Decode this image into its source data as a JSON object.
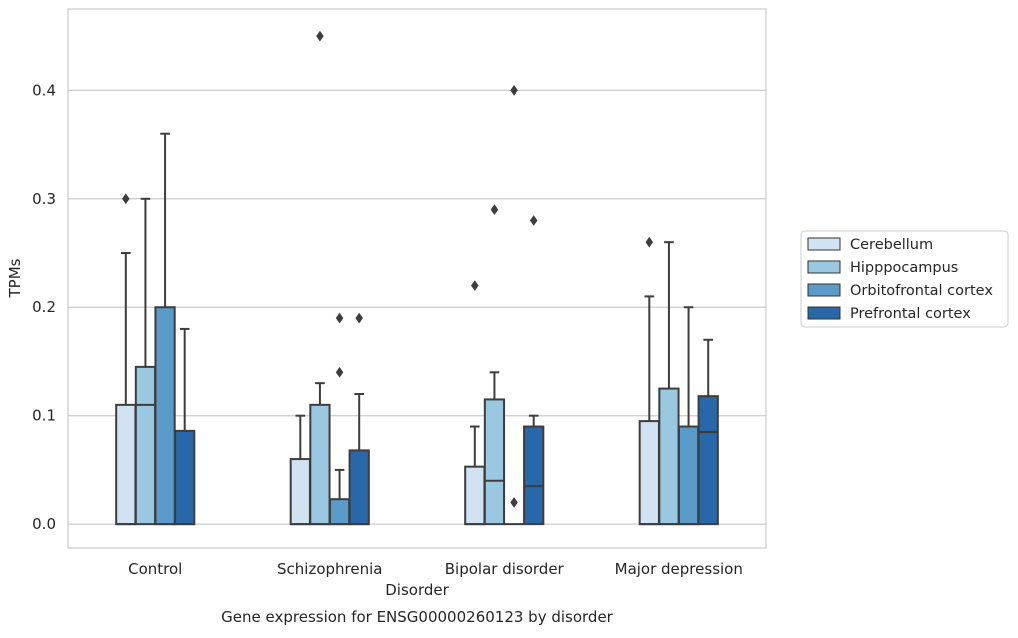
{
  "chart_data": {
    "type": "box",
    "caption": "Gene expression for ENSG00000260123 by disorder",
    "xlabel": "Disorder",
    "ylabel": "TPMs",
    "ylim": [
      -0.022,
      0.475
    ],
    "yticks": [
      0.0,
      0.1,
      0.2,
      0.3,
      0.4
    ],
    "ytick_labels": [
      "0.0",
      "0.1",
      "0.2",
      "0.3",
      "0.4"
    ],
    "grid": "horizontal",
    "legend_position": "right",
    "categories": [
      "Control",
      "Schizophrenia",
      "Bipolar disorder",
      "Major depression"
    ],
    "series": [
      {
        "name": "Cerebellum",
        "color": "#d1e2f2",
        "boxes": [
          {
            "q1": 0.0,
            "median": 0.0,
            "q3": 0.11,
            "whisker_low": 0.0,
            "whisker_high": 0.25,
            "outliers": [
              0.3
            ]
          },
          {
            "q1": 0.0,
            "median": 0.0,
            "q3": 0.06,
            "whisker_low": 0.0,
            "whisker_high": 0.1,
            "outliers": []
          },
          {
            "q1": 0.0,
            "median": 0.0,
            "q3": 0.053,
            "whisker_low": 0.0,
            "whisker_high": 0.09,
            "outliers": [
              0.22
            ]
          },
          {
            "q1": 0.0,
            "median": 0.0,
            "q3": 0.095,
            "whisker_low": 0.0,
            "whisker_high": 0.21,
            "outliers": [
              0.26
            ]
          }
        ]
      },
      {
        "name": "Hipppocampus",
        "color": "#9ac8e0",
        "boxes": [
          {
            "q1": 0.0,
            "median": 0.11,
            "q3": 0.145,
            "whisker_low": 0.0,
            "whisker_high": 0.3,
            "outliers": []
          },
          {
            "q1": 0.0,
            "median": 0.0,
            "q3": 0.11,
            "whisker_low": 0.0,
            "whisker_high": 0.13,
            "outliers": [
              0.45
            ]
          },
          {
            "q1": 0.0,
            "median": 0.04,
            "q3": 0.115,
            "whisker_low": 0.0,
            "whisker_high": 0.14,
            "outliers": [
              0.29
            ]
          },
          {
            "q1": 0.0,
            "median": 0.0,
            "q3": 0.125,
            "whisker_low": 0.0,
            "whisker_high": 0.26,
            "outliers": []
          }
        ]
      },
      {
        "name": "Orbitofrontal cortex",
        "color": "#5a9bc9",
        "boxes": [
          {
            "q1": 0.0,
            "median": 0.0,
            "q3": 0.2,
            "whisker_low": 0.0,
            "whisker_high": 0.36,
            "outliers": []
          },
          {
            "q1": 0.0,
            "median": 0.0,
            "q3": 0.023,
            "whisker_low": 0.0,
            "whisker_high": 0.05,
            "outliers": [
              0.14,
              0.19
            ]
          },
          {
            "q1": 0.0,
            "median": 0.0,
            "q3": 0.0,
            "whisker_low": 0.0,
            "whisker_high": 0.0,
            "outliers": [
              0.02,
              0.4
            ]
          },
          {
            "q1": 0.0,
            "median": 0.0,
            "q3": 0.09,
            "whisker_low": 0.0,
            "whisker_high": 0.2,
            "outliers": []
          }
        ]
      },
      {
        "name": "Prefrontal cortex",
        "color": "#2868a8",
        "boxes": [
          {
            "q1": 0.0,
            "median": 0.0,
            "q3": 0.086,
            "whisker_low": 0.0,
            "whisker_high": 0.18,
            "outliers": []
          },
          {
            "q1": 0.0,
            "median": 0.0,
            "q3": 0.068,
            "whisker_low": 0.0,
            "whisker_high": 0.12,
            "outliers": [
              0.19
            ]
          },
          {
            "q1": 0.0,
            "median": 0.035,
            "q3": 0.09,
            "whisker_low": 0.0,
            "whisker_high": 0.1,
            "outliers": [
              0.28
            ]
          },
          {
            "q1": 0.0,
            "median": 0.085,
            "q3": 0.118,
            "whisker_low": 0.0,
            "whisker_high": 0.17,
            "outliers": []
          }
        ]
      }
    ]
  }
}
